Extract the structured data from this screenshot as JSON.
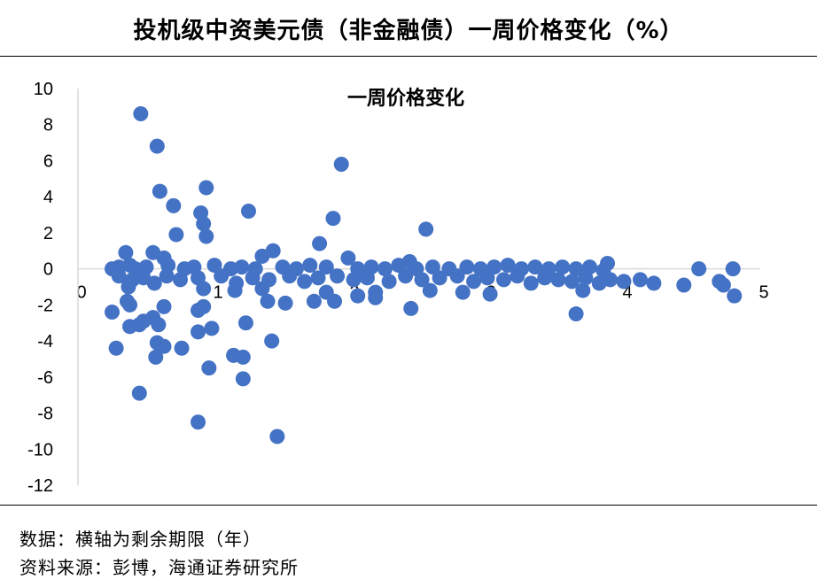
{
  "header": {
    "title": "投机级中资美元债（非金融债）一周价格变化（%）"
  },
  "footer": {
    "note": "数据：横轴为剩余期限（年）",
    "source": "资料来源：彭博，海通证券研究所"
  },
  "chart_data": {
    "type": "scatter",
    "title": "一周价格变化",
    "xlabel": "",
    "ylabel": "",
    "xlim": [
      0,
      5
    ],
    "ylim": [
      -12,
      10
    ],
    "x_ticks": [
      "0",
      "1",
      "2",
      "3",
      "4",
      "5"
    ],
    "y_ticks": [
      "10",
      "8",
      "6",
      "4",
      "2",
      "0",
      "-2",
      "-4",
      "-6",
      "-8",
      "-10",
      "-12"
    ],
    "grid": false,
    "marker_color": "#4472C4",
    "series": [
      {
        "points": [
          [
            0.46,
            8.6
          ],
          [
            0.58,
            6.8
          ],
          [
            1.93,
            5.8
          ],
          [
            0.6,
            4.3
          ],
          [
            0.94,
            4.5
          ],
          [
            0.7,
            3.5
          ],
          [
            0.9,
            3.1
          ],
          [
            1.25,
            3.2
          ],
          [
            0.92,
            2.5
          ],
          [
            1.87,
            2.8
          ],
          [
            0.72,
            1.9
          ],
          [
            0.94,
            1.8
          ],
          [
            2.55,
            2.2
          ],
          [
            1.77,
            1.4
          ],
          [
            1.43,
            1.0
          ],
          [
            0.35,
            0.9
          ],
          [
            0.55,
            0.9
          ],
          [
            0.63,
            0.6
          ],
          [
            1.35,
            0.7
          ],
          [
            1.98,
            0.6
          ],
          [
            2.43,
            0.4
          ],
          [
            3.88,
            0.3
          ],
          [
            0.25,
            0.0
          ],
          [
            0.3,
            0.1
          ],
          [
            0.38,
            0.2
          ],
          [
            0.42,
            0.0
          ],
          [
            0.5,
            0.1
          ],
          [
            0.66,
            0.2
          ],
          [
            0.78,
            0.0
          ],
          [
            0.85,
            0.1
          ],
          [
            1.0,
            0.2
          ],
          [
            1.12,
            0.0
          ],
          [
            1.2,
            0.1
          ],
          [
            1.3,
            0.0
          ],
          [
            1.5,
            0.1
          ],
          [
            1.6,
            0.0
          ],
          [
            1.7,
            0.2
          ],
          [
            1.82,
            0.1
          ],
          [
            2.05,
            0.0
          ],
          [
            2.15,
            0.1
          ],
          [
            2.25,
            0.0
          ],
          [
            2.35,
            0.2
          ],
          [
            2.48,
            0.0
          ],
          [
            2.6,
            0.1
          ],
          [
            2.72,
            0.0
          ],
          [
            2.85,
            0.1
          ],
          [
            2.95,
            0.0
          ],
          [
            3.05,
            0.1
          ],
          [
            3.15,
            0.2
          ],
          [
            3.25,
            0.0
          ],
          [
            3.35,
            0.1
          ],
          [
            3.45,
            0.0
          ],
          [
            3.55,
            0.1
          ],
          [
            3.65,
            0.0
          ],
          [
            3.75,
            0.1
          ],
          [
            3.85,
            -0.1
          ],
          [
            4.55,
            0.0
          ],
          [
            4.8,
            0.0
          ],
          [
            0.3,
            -0.4
          ],
          [
            0.4,
            -0.6
          ],
          [
            0.48,
            -0.5
          ],
          [
            0.56,
            -0.8
          ],
          [
            0.65,
            -0.4
          ],
          [
            0.75,
            -0.6
          ],
          [
            0.88,
            -0.5
          ],
          [
            1.05,
            -0.4
          ],
          [
            1.16,
            -0.8
          ],
          [
            1.28,
            -0.5
          ],
          [
            1.4,
            -0.6
          ],
          [
            1.55,
            -0.4
          ],
          [
            1.66,
            -0.7
          ],
          [
            1.76,
            -0.5
          ],
          [
            1.9,
            -0.4
          ],
          [
            2.02,
            -0.6
          ],
          [
            2.12,
            -0.5
          ],
          [
            2.28,
            -0.7
          ],
          [
            2.4,
            -0.4
          ],
          [
            2.52,
            -0.6
          ],
          [
            2.65,
            -0.5
          ],
          [
            2.78,
            -0.4
          ],
          [
            2.9,
            -0.7
          ],
          [
            3.0,
            -0.5
          ],
          [
            3.12,
            -0.6
          ],
          [
            3.22,
            -0.4
          ],
          [
            3.32,
            -0.8
          ],
          [
            3.42,
            -0.5
          ],
          [
            3.52,
            -0.6
          ],
          [
            3.62,
            -0.7
          ],
          [
            3.72,
            -0.5
          ],
          [
            3.82,
            -0.8
          ],
          [
            3.9,
            -0.6
          ],
          [
            4.0,
            -0.7
          ],
          [
            4.12,
            -0.6
          ],
          [
            4.22,
            -0.8
          ],
          [
            4.44,
            -0.9
          ],
          [
            4.7,
            -0.7
          ],
          [
            4.73,
            -0.9
          ],
          [
            0.37,
            -1.0
          ],
          [
            0.92,
            -1.1
          ],
          [
            1.15,
            -1.2
          ],
          [
            1.35,
            -1.1
          ],
          [
            1.82,
            -1.3
          ],
          [
            2.18,
            -1.3
          ],
          [
            2.58,
            -1.2
          ],
          [
            2.82,
            -1.3
          ],
          [
            3.02,
            -1.4
          ],
          [
            3.7,
            -1.2
          ],
          [
            0.38,
            -2.0
          ],
          [
            0.36,
            -1.8
          ],
          [
            1.39,
            -1.8
          ],
          [
            1.52,
            -1.9
          ],
          [
            1.73,
            -1.8
          ],
          [
            1.88,
            -1.8
          ],
          [
            2.05,
            -1.5
          ],
          [
            2.18,
            -1.6
          ],
          [
            2.44,
            -2.2
          ],
          [
            3.65,
            -2.5
          ],
          [
            4.81,
            -1.5
          ],
          [
            0.63,
            -2.1
          ],
          [
            0.25,
            -2.4
          ],
          [
            0.92,
            -2.1
          ],
          [
            0.88,
            -2.3
          ],
          [
            0.55,
            -2.7
          ],
          [
            0.48,
            -2.9
          ],
          [
            0.59,
            -3.1
          ],
          [
            0.45,
            -3.1
          ],
          [
            0.38,
            -3.2
          ],
          [
            0.98,
            -3.3
          ],
          [
            0.88,
            -3.5
          ],
          [
            1.23,
            -3.0
          ],
          [
            0.28,
            -4.4
          ],
          [
            0.58,
            -4.1
          ],
          [
            0.63,
            -4.3
          ],
          [
            0.76,
            -4.4
          ],
          [
            1.42,
            -4.0
          ],
          [
            1.14,
            -4.8
          ],
          [
            1.21,
            -4.9
          ],
          [
            0.57,
            -4.9
          ],
          [
            0.96,
            -5.5
          ],
          [
            1.21,
            -6.1
          ],
          [
            0.45,
            -6.9
          ],
          [
            0.88,
            -8.5
          ],
          [
            1.46,
            -9.3
          ]
        ]
      }
    ]
  }
}
